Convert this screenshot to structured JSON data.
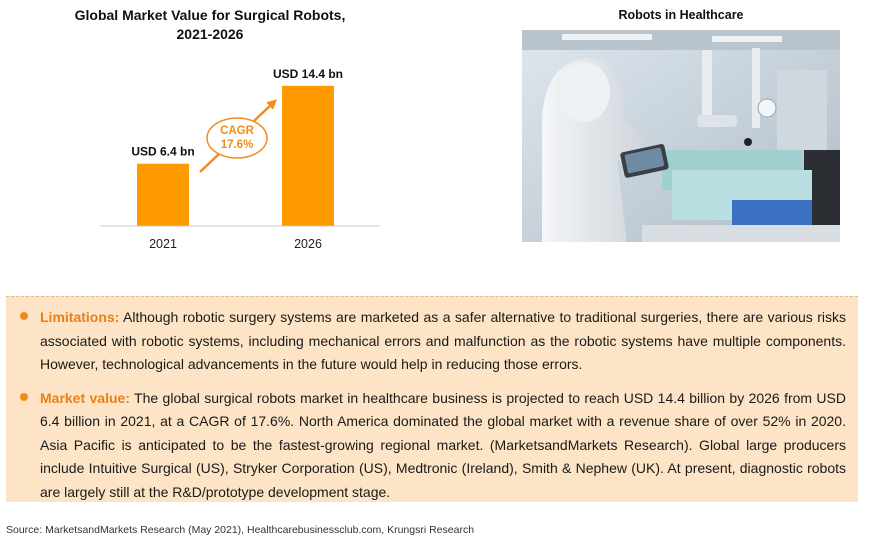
{
  "chart_data": {
    "type": "bar",
    "title": "Global Market Value for Surgical Robots, 2021-2026",
    "categories": [
      "2021",
      "2026"
    ],
    "values": [
      6.4,
      14.4
    ],
    "data_labels": [
      "USD 6.4 bn",
      "USD 14.4 bn"
    ],
    "ylim": [
      0,
      15
    ],
    "annotation": {
      "line1": "CAGR",
      "line2": "17.6%"
    },
    "bar_color": "#ff9900",
    "accent_color": "#f28c1e"
  },
  "chart_title": {
    "line1": "Global Market Value for Surgical Robots,",
    "line2": "2021-2026"
  },
  "photo": {
    "title": "Robots in Healthcare",
    "image_icon": "surgical-robot-photo"
  },
  "bullets": [
    {
      "heading": "Limitations:",
      "text": " Although robotic surgery systems are marketed as a safer alternative to traditional surgeries, there are various risks associated with robotic systems, including mechanical errors and malfunction as the robotic systems have multiple components. However, technological advancements in the future would help in reducing those errors."
    },
    {
      "heading": "Market value:",
      "text": " The global surgical robots market in healthcare business is projected to reach USD 14.4 billion by 2026 from USD 6.4 billion in 2021, at a CAGR of 17.6%. North America dominated the global market with a revenue share of over 52% in 2020. Asia Pacific is anticipated to be the fastest-growing regional market. (MarketsandMarkets Research). Global large producers include Intuitive Surgical (US), Stryker Corporation (US), Medtronic (Ireland), Smith & Nephew (UK). At present, diagnostic robots are largely still at the R&D/prototype development stage."
    }
  ],
  "source": "Source: MarketsandMarkets Research (May 2021), Healthcarebusinessclub.com, Krungsri Research",
  "colors": {
    "box_background": "#fde4c6",
    "heading": "#e8801a"
  }
}
